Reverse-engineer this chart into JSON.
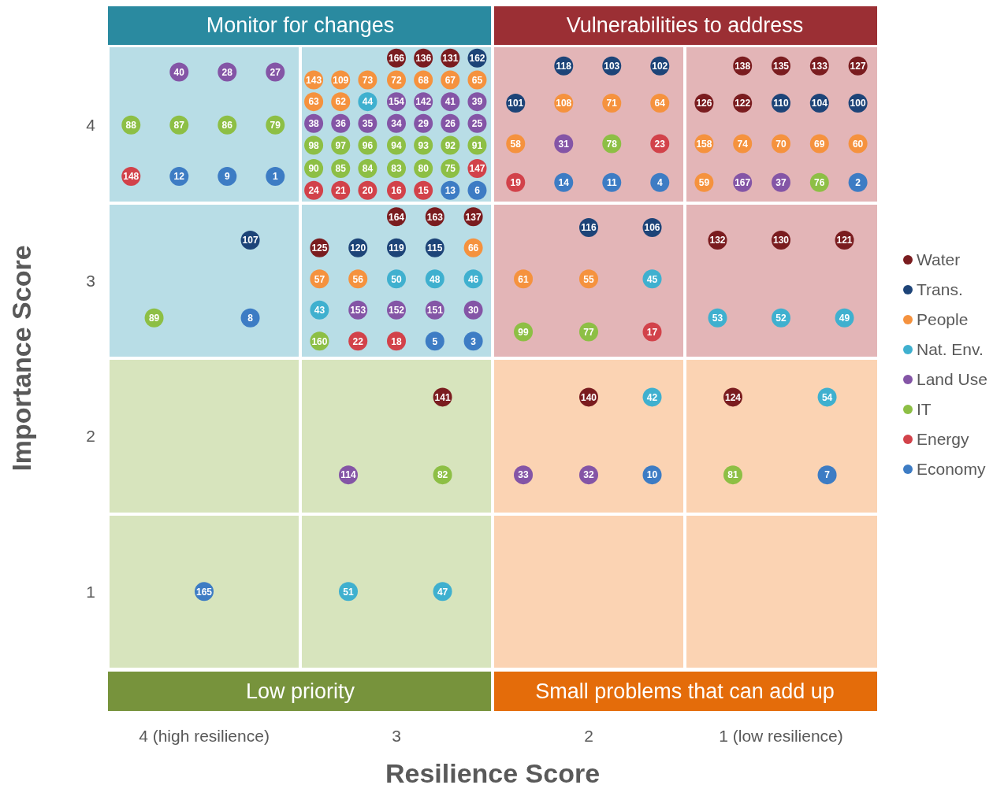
{
  "chart_data": {
    "type": "scatter",
    "xlabel": "Resilience Score",
    "ylabel": "Importance Score",
    "xlim": [
      4.5,
      0.5
    ],
    "xticks": [
      {
        "value": 4,
        "label": "4 (high resilience)"
      },
      3,
      2,
      {
        "value": 1,
        "label": "1 (low resilience)"
      }
    ],
    "ylim": [
      0.5,
      4.5
    ],
    "yticks": [
      1,
      2,
      3,
      4
    ],
    "legend": "right",
    "marker": "circle",
    "series": [
      {
        "name": "Water",
        "color": "#7a1c1f",
        "x": [
          3.0,
          2.86,
          2.72,
          3.0,
          2.8,
          2.6,
          3.4,
          1.2,
          1.0,
          0.8,
          0.6,
          1.4,
          1.2,
          1.33,
          1.0,
          0.67,
          2.76,
          2.0,
          1.25
        ],
        "values": [
          4.43,
          4.43,
          4.43,
          3.41,
          3.41,
          3.41,
          3.21,
          4.38,
          4.38,
          4.38,
          4.38,
          4.14,
          4.14,
          3.26,
          3.26,
          3.26,
          2.25,
          2.25,
          2.25
        ]
      },
      {
        "name": "Trans.",
        "color": "#1d4478",
        "x": [
          3.76,
          2.58,
          3.2,
          3.0,
          2.8,
          2.13,
          1.88,
          1.63,
          2.38,
          1.0,
          0.8,
          0.6,
          2.0,
          1.67
        ],
        "values": [
          3.26,
          4.43,
          3.21,
          3.21,
          3.21,
          4.38,
          4.38,
          4.38,
          4.14,
          4.14,
          4.14,
          4.14,
          3.34,
          3.34
        ]
      },
      {
        "name": "People",
        "color": "#f5923e",
        "x": [
          3.43,
          3.29,
          3.15,
          3.0,
          2.86,
          2.72,
          2.58,
          3.43,
          3.29,
          2.6,
          3.4,
          3.2,
          2.13,
          1.88,
          1.63,
          2.38,
          1.4,
          1.2,
          1.0,
          0.8,
          0.6,
          1.4,
          2.34,
          2.0
        ],
        "values": [
          4.29,
          4.29,
          4.29,
          4.29,
          4.29,
          4.29,
          4.29,
          4.15,
          4.15,
          3.21,
          3.01,
          3.01,
          4.14,
          4.14,
          4.14,
          3.88,
          3.88,
          3.88,
          3.88,
          3.88,
          3.88,
          3.63,
          3.01,
          3.01
        ]
      },
      {
        "name": "Nat. Env.",
        "color": "#3fb0cf",
        "x": [
          3.15,
          3.0,
          2.8,
          2.6,
          3.4,
          1.67,
          1.33,
          1.0,
          0.67,
          1.67,
          0.76,
          3.25,
          2.76
        ],
        "values": [
          4.15,
          3.01,
          3.01,
          3.01,
          2.81,
          3.01,
          2.76,
          2.76,
          2.76,
          2.25,
          2.25,
          1.0,
          1.0
        ]
      },
      {
        "name": "Land Use",
        "color": "#8455a6",
        "x": [
          4.13,
          3.88,
          3.63,
          3.0,
          2.86,
          2.72,
          2.58,
          3.43,
          3.29,
          3.15,
          3.0,
          2.86,
          2.72,
          2.58,
          3.2,
          3.0,
          2.8,
          2.6,
          2.13,
          1.2,
          1.0,
          3.25,
          2.34,
          2.0
        ],
        "values": [
          4.34,
          4.34,
          4.34,
          4.15,
          4.15,
          4.15,
          4.15,
          4.01,
          4.01,
          4.01,
          4.01,
          4.01,
          4.01,
          4.01,
          2.81,
          2.81,
          2.81,
          2.81,
          3.88,
          3.63,
          3.63,
          1.75,
          1.75,
          1.75
        ]
      },
      {
        "name": "IT",
        "color": "#8dbf45",
        "x": [
          4.38,
          4.13,
          3.88,
          3.63,
          4.26,
          3.43,
          3.29,
          3.15,
          3.0,
          2.86,
          2.72,
          2.58,
          3.43,
          3.29,
          3.15,
          3.0,
          2.86,
          2.72,
          3.4,
          1.88,
          0.8,
          2.34,
          2.0,
          2.76,
          1.25
        ],
        "values": [
          4.0,
          4.0,
          4.0,
          4.0,
          2.76,
          3.87,
          3.87,
          3.87,
          3.87,
          3.87,
          3.87,
          3.87,
          3.72,
          3.72,
          3.72,
          3.72,
          3.72,
          3.72,
          2.61,
          3.88,
          3.63,
          2.67,
          2.67,
          1.75,
          1.75
        ]
      },
      {
        "name": "Energy",
        "color": "#d2424a",
        "x": [
          4.38,
          2.58,
          3.43,
          3.29,
          3.15,
          3.0,
          2.86,
          3.2,
          3.0,
          1.63,
          2.38,
          1.67
        ],
        "values": [
          3.67,
          3.72,
          3.58,
          3.58,
          3.58,
          3.58,
          3.58,
          2.61,
          2.61,
          3.88,
          3.63,
          2.67
        ]
      },
      {
        "name": "Economy",
        "color": "#3d7cc4",
        "x": [
          4.13,
          3.88,
          3.63,
          3.76,
          2.72,
          2.58,
          2.8,
          2.6,
          2.13,
          1.88,
          1.63,
          0.6,
          1.67,
          0.76,
          4.0
        ],
        "values": [
          3.67,
          3.67,
          3.67,
          2.76,
          3.58,
          3.58,
          2.61,
          2.61,
          3.63,
          3.63,
          3.63,
          3.63,
          1.75,
          1.75,
          1.0
        ]
      }
    ],
    "annotations": [
      "Monitor for changes",
      "Vulnerabilities to address",
      "Low priority",
      "Small problems that can add up",
      {
        "text": "166",
        "x": 3.0,
        "y": 4.43
      },
      {
        "text": "136",
        "x": 2.86,
        "y": 4.43
      },
      {
        "text": "131",
        "x": 2.72,
        "y": 4.43
      },
      {
        "text": "164",
        "x": 3.0,
        "y": 3.41
      },
      {
        "text": "163",
        "x": 2.8,
        "y": 3.41
      },
      {
        "text": "137",
        "x": 2.6,
        "y": 3.41
      },
      {
        "text": "125",
        "x": 3.4,
        "y": 3.21
      },
      {
        "text": "138",
        "x": 1.2,
        "y": 4.38
      },
      {
        "text": "135",
        "x": 1.0,
        "y": 4.38
      },
      {
        "text": "133",
        "x": 0.8,
        "y": 4.38
      },
      {
        "text": "127",
        "x": 0.6,
        "y": 4.38
      },
      {
        "text": "126",
        "x": 1.4,
        "y": 4.14
      },
      {
        "text": "122",
        "x": 1.2,
        "y": 4.14
      },
      {
        "text": "132",
        "x": 1.33,
        "y": 3.26
      },
      {
        "text": "130",
        "x": 1.0,
        "y": 3.26
      },
      {
        "text": "121",
        "x": 0.67,
        "y": 3.26
      },
      {
        "text": "141",
        "x": 2.76,
        "y": 2.25
      },
      {
        "text": "140",
        "x": 2.0,
        "y": 2.25
      },
      {
        "text": "124",
        "x": 1.25,
        "y": 2.25
      },
      {
        "text": "107",
        "x": 3.76,
        "y": 3.26
      },
      {
        "text": "162",
        "x": 2.58,
        "y": 4.43
      },
      {
        "text": "120",
        "x": 3.2,
        "y": 3.21
      },
      {
        "text": "119",
        "x": 3.0,
        "y": 3.21
      },
      {
        "text": "115",
        "x": 2.8,
        "y": 3.21
      },
      {
        "text": "118",
        "x": 2.13,
        "y": 4.38
      },
      {
        "text": "103",
        "x": 1.88,
        "y": 4.38
      },
      {
        "text": "102",
        "x": 1.63,
        "y": 4.38
      },
      {
        "text": "101",
        "x": 2.38,
        "y": 4.14
      },
      {
        "text": "110",
        "x": 1.0,
        "y": 4.14
      },
      {
        "text": "104",
        "x": 0.8,
        "y": 4.14
      },
      {
        "text": "100",
        "x": 0.6,
        "y": 4.14
      },
      {
        "text": "116",
        "x": 2.0,
        "y": 3.34
      },
      {
        "text": "106",
        "x": 1.67,
        "y": 3.34
      },
      {
        "text": "143",
        "x": 3.43,
        "y": 4.29
      },
      {
        "text": "109",
        "x": 3.29,
        "y": 4.29
      },
      {
        "text": "73",
        "x": 3.15,
        "y": 4.29
      },
      {
        "text": "72",
        "x": 3.0,
        "y": 4.29
      },
      {
        "text": "68",
        "x": 2.86,
        "y": 4.29
      },
      {
        "text": "67",
        "x": 2.72,
        "y": 4.29
      },
      {
        "text": "65",
        "x": 2.58,
        "y": 4.29
      },
      {
        "text": "63",
        "x": 3.43,
        "y": 4.15
      },
      {
        "text": "62",
        "x": 3.29,
        "y": 4.15
      },
      {
        "text": "66",
        "x": 2.6,
        "y": 3.21
      },
      {
        "text": "57",
        "x": 3.4,
        "y": 3.01
      },
      {
        "text": "56",
        "x": 3.2,
        "y": 3.01
      },
      {
        "text": "108",
        "x": 2.13,
        "y": 4.14
      },
      {
        "text": "71",
        "x": 1.88,
        "y": 4.14
      },
      {
        "text": "64",
        "x": 1.63,
        "y": 4.14
      },
      {
        "text": "58",
        "x": 2.38,
        "y": 3.88
      },
      {
        "text": "158",
        "x": 1.4,
        "y": 3.88
      },
      {
        "text": "74",
        "x": 1.2,
        "y": 3.88
      },
      {
        "text": "70",
        "x": 1.0,
        "y": 3.88
      },
      {
        "text": "69",
        "x": 0.8,
        "y": 3.88
      },
      {
        "text": "60",
        "x": 0.6,
        "y": 3.88
      },
      {
        "text": "59",
        "x": 1.4,
        "y": 3.63
      },
      {
        "text": "61",
        "x": 2.34,
        "y": 3.01
      },
      {
        "text": "55",
        "x": 2.0,
        "y": 3.01
      },
      {
        "text": "44",
        "x": 3.15,
        "y": 4.15
      },
      {
        "text": "50",
        "x": 3.0,
        "y": 3.01
      },
      {
        "text": "48",
        "x": 2.8,
        "y": 3.01
      },
      {
        "text": "46",
        "x": 2.6,
        "y": 3.01
      },
      {
        "text": "43",
        "x": 3.4,
        "y": 2.81
      },
      {
        "text": "45",
        "x": 1.67,
        "y": 3.01
      },
      {
        "text": "53",
        "x": 1.33,
        "y": 2.76
      },
      {
        "text": "52",
        "x": 1.0,
        "y": 2.76
      },
      {
        "text": "49",
        "x": 0.67,
        "y": 2.76
      },
      {
        "text": "42",
        "x": 1.67,
        "y": 2.25
      },
      {
        "text": "54",
        "x": 0.76,
        "y": 2.25
      },
      {
        "text": "51",
        "x": 3.25,
        "y": 1.0
      },
      {
        "text": "47",
        "x": 2.76,
        "y": 1.0
      },
      {
        "text": "40",
        "x": 4.13,
        "y": 4.34
      },
      {
        "text": "28",
        "x": 3.88,
        "y": 4.34
      },
      {
        "text": "27",
        "x": 3.63,
        "y": 4.34
      },
      {
        "text": "154",
        "x": 3.0,
        "y": 4.15
      },
      {
        "text": "142",
        "x": 2.86,
        "y": 4.15
      },
      {
        "text": "41",
        "x": 2.72,
        "y": 4.15
      },
      {
        "text": "39",
        "x": 2.58,
        "y": 4.15
      },
      {
        "text": "38",
        "x": 3.43,
        "y": 4.01
      },
      {
        "text": "36",
        "x": 3.29,
        "y": 4.01
      },
      {
        "text": "35",
        "x": 3.15,
        "y": 4.01
      },
      {
        "text": "34",
        "x": 3.0,
        "y": 4.01
      },
      {
        "text": "29",
        "x": 2.86,
        "y": 4.01
      },
      {
        "text": "26",
        "x": 2.72,
        "y": 4.01
      },
      {
        "text": "25",
        "x": 2.58,
        "y": 4.01
      },
      {
        "text": "153",
        "x": 3.2,
        "y": 2.81
      },
      {
        "text": "152",
        "x": 3.0,
        "y": 2.81
      },
      {
        "text": "151",
        "x": 2.8,
        "y": 2.81
      },
      {
        "text": "30",
        "x": 2.6,
        "y": 2.81
      },
      {
        "text": "31",
        "x": 2.13,
        "y": 3.88
      },
      {
        "text": "167",
        "x": 1.2,
        "y": 3.63
      },
      {
        "text": "37",
        "x": 1.0,
        "y": 3.63
      },
      {
        "text": "114",
        "x": 3.25,
        "y": 1.75
      },
      {
        "text": "33",
        "x": 2.34,
        "y": 1.75
      },
      {
        "text": "32",
        "x": 2.0,
        "y": 1.75
      },
      {
        "text": "88",
        "x": 4.38,
        "y": 4.0
      },
      {
        "text": "87",
        "x": 4.13,
        "y": 4.0
      },
      {
        "text": "86",
        "x": 3.88,
        "y": 4.0
      },
      {
        "text": "79",
        "x": 3.63,
        "y": 4.0
      },
      {
        "text": "89",
        "x": 4.26,
        "y": 2.76
      },
      {
        "text": "98",
        "x": 3.43,
        "y": 3.87
      },
      {
        "text": "97",
        "x": 3.29,
        "y": 3.87
      },
      {
        "text": "96",
        "x": 3.15,
        "y": 3.87
      },
      {
        "text": "94",
        "x": 3.0,
        "y": 3.87
      },
      {
        "text": "93",
        "x": 2.86,
        "y": 3.87
      },
      {
        "text": "92",
        "x": 2.72,
        "y": 3.87
      },
      {
        "text": "91",
        "x": 2.58,
        "y": 3.87
      },
      {
        "text": "90",
        "x": 3.43,
        "y": 3.72
      },
      {
        "text": "85",
        "x": 3.29,
        "y": 3.72
      },
      {
        "text": "84",
        "x": 3.15,
        "y": 3.72
      },
      {
        "text": "83",
        "x": 3.0,
        "y": 3.72
      },
      {
        "text": "80",
        "x": 2.86,
        "y": 3.72
      },
      {
        "text": "75",
        "x": 2.72,
        "y": 3.72
      },
      {
        "text": "160",
        "x": 3.4,
        "y": 2.61
      },
      {
        "text": "78",
        "x": 1.88,
        "y": 3.88
      },
      {
        "text": "76",
        "x": 0.8,
        "y": 3.63
      },
      {
        "text": "99",
        "x": 2.34,
        "y": 2.67
      },
      {
        "text": "77",
        "x": 2.0,
        "y": 2.67
      },
      {
        "text": "82",
        "x": 2.76,
        "y": 1.75
      },
      {
        "text": "81",
        "x": 1.25,
        "y": 1.75
      },
      {
        "text": "148",
        "x": 4.38,
        "y": 3.67
      },
      {
        "text": "147",
        "x": 2.58,
        "y": 3.72
      },
      {
        "text": "24",
        "x": 3.43,
        "y": 3.58
      },
      {
        "text": "21",
        "x": 3.29,
        "y": 3.58
      },
      {
        "text": "20",
        "x": 3.15,
        "y": 3.58
      },
      {
        "text": "16",
        "x": 3.0,
        "y": 3.58
      },
      {
        "text": "15",
        "x": 2.86,
        "y": 3.58
      },
      {
        "text": "22",
        "x": 3.2,
        "y": 2.61
      },
      {
        "text": "18",
        "x": 3.0,
        "y": 2.61
      },
      {
        "text": "23",
        "x": 1.63,
        "y": 3.88
      },
      {
        "text": "19",
        "x": 2.38,
        "y": 3.63
      },
      {
        "text": "17",
        "x": 1.67,
        "y": 2.67
      },
      {
        "text": "12",
        "x": 4.13,
        "y": 3.67
      },
      {
        "text": "9",
        "x": 3.88,
        "y": 3.67
      },
      {
        "text": "1",
        "x": 3.63,
        "y": 3.67
      },
      {
        "text": "8",
        "x": 3.76,
        "y": 2.76
      },
      {
        "text": "13",
        "x": 2.72,
        "y": 3.58
      },
      {
        "text": "6",
        "x": 2.58,
        "y": 3.58
      },
      {
        "text": "5",
        "x": 2.8,
        "y": 2.61
      },
      {
        "text": "3",
        "x": 2.6,
        "y": 2.61
      },
      {
        "text": "14",
        "x": 2.13,
        "y": 3.63
      },
      {
        "text": "11",
        "x": 1.88,
        "y": 3.63
      },
      {
        "text": "4",
        "x": 1.63,
        "y": 3.63
      },
      {
        "text": "2",
        "x": 0.6,
        "y": 3.63
      },
      {
        "text": "10",
        "x": 1.67,
        "y": 1.75
      },
      {
        "text": "7",
        "x": 0.76,
        "y": 1.75
      },
      {
        "text": "165",
        "x": 4.0,
        "y": 1.0
      }
    ]
  }
}
